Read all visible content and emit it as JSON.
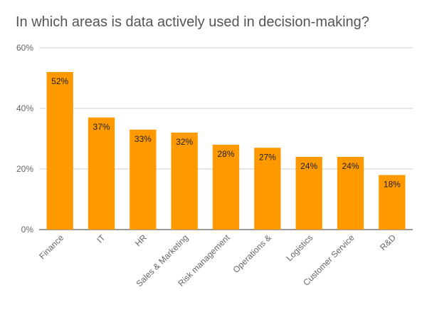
{
  "chart_data": {
    "type": "bar",
    "title": "In which areas is data actively used in decision-making?",
    "categories": [
      "Finance",
      "IT",
      "HR",
      "Sales & Marketing",
      "Risk management",
      "Operations &",
      "Logistics",
      "Customer Service",
      "R&D"
    ],
    "values": [
      52,
      37,
      33,
      32,
      28,
      27,
      24,
      24,
      18
    ],
    "value_labels": [
      "52%",
      "37%",
      "33%",
      "32%",
      "28%",
      "27%",
      "24%",
      "24%",
      "18%"
    ],
    "y_ticks": [
      0,
      20,
      40,
      60
    ],
    "y_tick_labels": [
      "0%",
      "20%",
      "40%",
      "60%"
    ],
    "ylim": [
      0,
      60
    ],
    "grid": true,
    "xlabel": "",
    "ylabel": "",
    "colors": {
      "bar": "#ff9900",
      "grid": "#cccccc",
      "axis_text": "#666666",
      "label_text": "#222222",
      "title": "#555555"
    }
  }
}
